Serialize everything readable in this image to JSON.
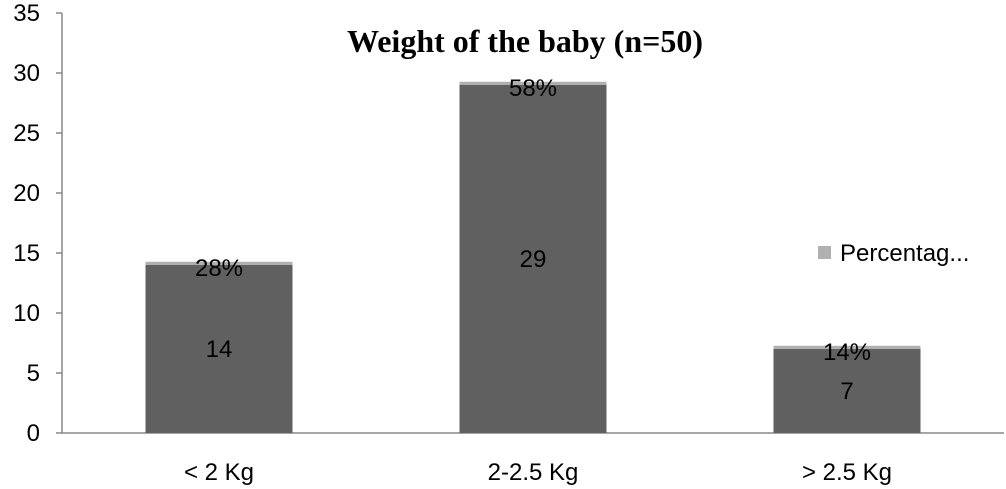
{
  "chart_data": {
    "type": "bar",
    "stacked": true,
    "title": "Weight of the baby (n=50)",
    "categories": [
      "< 2 Kg",
      "2-2.5 Kg",
      "> 2.5 Kg"
    ],
    "series": [
      {
        "values": [
          14,
          29,
          7
        ],
        "labels": [
          "14",
          "29",
          "7"
        ],
        "color": "#606060"
      },
      {
        "name": "Percentage",
        "values": [
          0.28,
          0.58,
          0.14
        ],
        "labels": [
          "28%",
          "58%",
          "14%"
        ],
        "color": "#b0b0b0"
      }
    ],
    "ylim": [
      0,
      35
    ],
    "yticks": [
      0,
      5,
      10,
      15,
      20,
      25,
      30,
      35
    ],
    "grid": false,
    "legend": {
      "position": "right",
      "text": "Percentag..."
    }
  }
}
